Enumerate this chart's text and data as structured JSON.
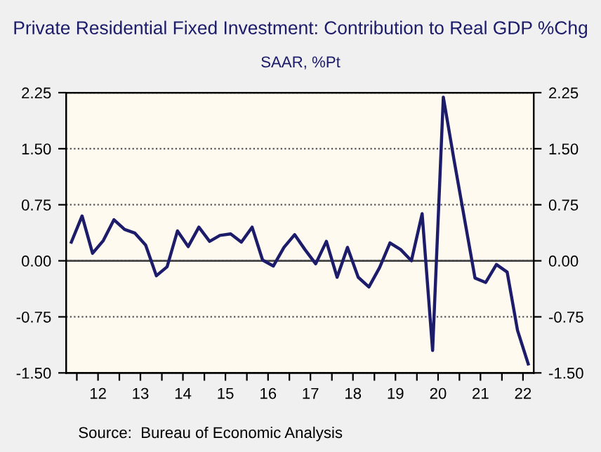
{
  "chart_data": {
    "type": "line",
    "title": "Private Residential Fixed Investment: Contribution to Real GDP %Chg",
    "subtitle": "SAAR, %Pt",
    "annotations": [
      "Source:  Bureau of Economic Analysis"
    ],
    "x": [
      "2011-11-15",
      "2012-02-15",
      "2012-05-15",
      "2012-08-15",
      "2012-11-15",
      "2013-02-15",
      "2013-05-15",
      "2013-08-15",
      "2013-11-15",
      "2014-02-15",
      "2014-05-15",
      "2014-08-15",
      "2014-11-15",
      "2015-02-15",
      "2015-05-15",
      "2015-08-15",
      "2015-11-15",
      "2016-02-15",
      "2016-05-15",
      "2016-08-15",
      "2016-11-15",
      "2017-02-15",
      "2017-05-15",
      "2017-08-15",
      "2017-11-15",
      "2018-02-15",
      "2018-05-15",
      "2018-08-15",
      "2018-11-15",
      "2019-02-15",
      "2019-05-15",
      "2019-08-15",
      "2019-11-15",
      "2020-02-15",
      "2020-05-15",
      "2020-08-15",
      "2020-11-15",
      "2021-02-15",
      "2021-05-15",
      "2021-08-15",
      "2021-11-15",
      "2022-02-15",
      "2022-05-15",
      "2022-08-15"
    ],
    "series": [
      {
        "color": "#1c1c6b",
        "values": [
          0.25,
          0.6,
          0.1,
          0.27,
          0.55,
          0.42,
          0.37,
          0.21,
          -0.2,
          -0.08,
          0.4,
          0.19,
          0.45,
          0.26,
          0.34,
          0.36,
          0.25,
          0.45,
          0.01,
          -0.07,
          0.18,
          0.35,
          0.15,
          -0.04,
          0.26,
          -0.22,
          0.18,
          -0.22,
          -0.35,
          -0.09,
          0.24,
          0.15,
          0.0,
          0.63,
          -1.2,
          2.19,
          1.35,
          0.55,
          -0.23,
          -0.29,
          -0.05,
          -0.15,
          -0.93,
          -1.38
        ]
      }
    ],
    "xlim": [
      "2011-10-01",
      "2022-10-01"
    ],
    "xticks": [
      {
        "value": "2012-01-01",
        "label": null
      },
      {
        "value": "2012-07-01",
        "label": "12"
      },
      {
        "value": "2013-01-01",
        "label": null
      },
      {
        "value": "2013-07-01",
        "label": "13"
      },
      {
        "value": "2014-01-01",
        "label": null
      },
      {
        "value": "2014-07-01",
        "label": "14"
      },
      {
        "value": "2015-01-01",
        "label": null
      },
      {
        "value": "2015-07-01",
        "label": "15"
      },
      {
        "value": "2016-01-01",
        "label": null
      },
      {
        "value": "2016-07-01",
        "label": "16"
      },
      {
        "value": "2017-01-01",
        "label": null
      },
      {
        "value": "2017-07-01",
        "label": "17"
      },
      {
        "value": "2018-01-01",
        "label": null
      },
      {
        "value": "2018-07-01",
        "label": "18"
      },
      {
        "value": "2019-01-01",
        "label": null
      },
      {
        "value": "2019-07-01",
        "label": "19"
      },
      {
        "value": "2020-01-01",
        "label": null
      },
      {
        "value": "2020-07-01",
        "label": "20"
      },
      {
        "value": "2021-01-01",
        "label": null
      },
      {
        "value": "2021-07-01",
        "label": "21"
      },
      {
        "value": "2022-01-01",
        "label": null
      },
      {
        "value": "2022-07-01",
        "label": "22"
      }
    ],
    "ylim": [
      -1.5,
      2.25
    ],
    "yticks": [
      {
        "value": -1.5,
        "label": "-1.50"
      },
      {
        "value": -0.75,
        "label": "-0.75"
      },
      {
        "value": 0,
        "label": "0.00"
      },
      {
        "value": 0.75,
        "label": "0.75"
      },
      {
        "value": 1.5,
        "label": "1.50"
      },
      {
        "value": 2.25,
        "label": "2.25"
      }
    ],
    "y2lim": [
      -1.5,
      2.25
    ],
    "y2ticks": [
      {
        "value": -1.5,
        "label": "-1.50"
      },
      {
        "value": -0.75,
        "label": "-0.75"
      },
      {
        "value": 0,
        "label": "0.00"
      },
      {
        "value": 0.75,
        "label": "0.75"
      },
      {
        "value": 1.5,
        "label": "1.50"
      },
      {
        "value": 2.25,
        "label": "2.25"
      }
    ],
    "ref_lines": [
      {
        "axis": "y",
        "value": 0,
        "color": "#444444",
        "line_style": "solid"
      }
    ],
    "grid": "y",
    "line_style": "solid",
    "marker": "none",
    "legend": false
  }
}
